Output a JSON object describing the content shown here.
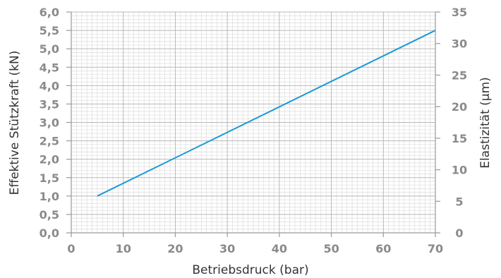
{
  "chart_data": {
    "type": "line",
    "xlabel": "Betriebsdruck (bar)",
    "ylabel": "Effektive Stützkraft  (kN)",
    "y2label": "Elastizität (µm)",
    "xlim": [
      0,
      70
    ],
    "ylim": [
      0,
      6
    ],
    "y2lim": [
      0,
      35
    ],
    "x_ticks": [
      "0",
      "10",
      "20",
      "30",
      "40",
      "50",
      "60",
      "70"
    ],
    "y_ticks": [
      "0,0",
      "0,5",
      "1,0",
      "1,5",
      "2,0",
      "2,5",
      "3,0",
      "3,5",
      "4,0",
      "4,5",
      "5,0",
      "5,5",
      "6,0"
    ],
    "y2_ticks": [
      "0",
      "5",
      "10",
      "15",
      "20",
      "25",
      "30",
      "35"
    ],
    "grid": true,
    "series": [
      {
        "x": [
          5,
          70
        ],
        "y": [
          1.0,
          5.5
        ],
        "color": "#1a9ad6"
      }
    ]
  }
}
